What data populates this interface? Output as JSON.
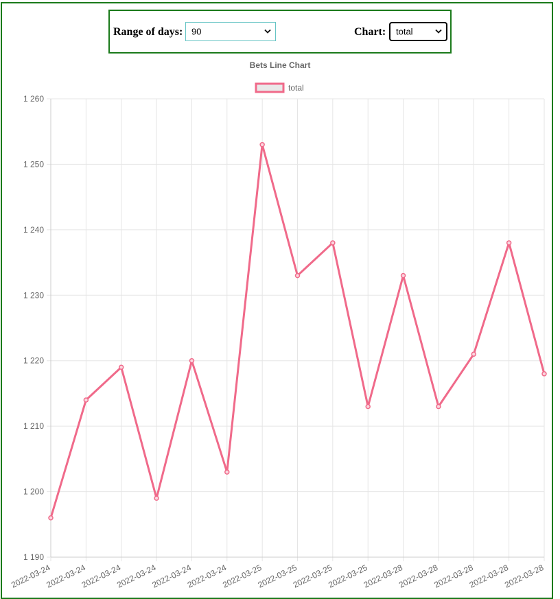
{
  "controls": {
    "range_label": "Range of days:",
    "range_value": "90",
    "chart_label": "Chart:",
    "chart_value": "total"
  },
  "colors": {
    "frame": "#1a7a1a",
    "line": "#f06a8a",
    "grid": "#e5e5e5",
    "text": "#666666",
    "range_border": "#67c5c5"
  },
  "icons": {
    "select_arrow": "chevron-down-icon"
  },
  "chart_data": {
    "type": "line",
    "title": "Bets Line Chart",
    "xlabel": "",
    "ylabel": "",
    "categories": [
      "2022-03-24",
      "2022-03-24",
      "2022-03-24",
      "2022-03-24",
      "2022-03-24",
      "2022-03-24",
      "2022-03-25",
      "2022-03-25",
      "2022-03-25",
      "2022-03-25",
      "2022-03-28",
      "2022-03-28",
      "2022-03-28",
      "2022-03-28",
      "2022-03-28"
    ],
    "series": [
      {
        "name": "total",
        "values": [
          1196,
          1214,
          1219,
          1199,
          1220,
          1203,
          1253,
          1233,
          1238,
          1213,
          1233,
          1213,
          1221,
          1238,
          1218
        ]
      }
    ],
    "ylim": [
      1190,
      1260
    ],
    "yticks": [
      1190,
      1200,
      1210,
      1220,
      1230,
      1240,
      1250,
      1260
    ],
    "ytick_labels": [
      "1 190",
      "1 200",
      "1 210",
      "1 220",
      "1 230",
      "1 240",
      "1 250",
      "1 260"
    ],
    "legend_position": "top",
    "grid": true
  }
}
